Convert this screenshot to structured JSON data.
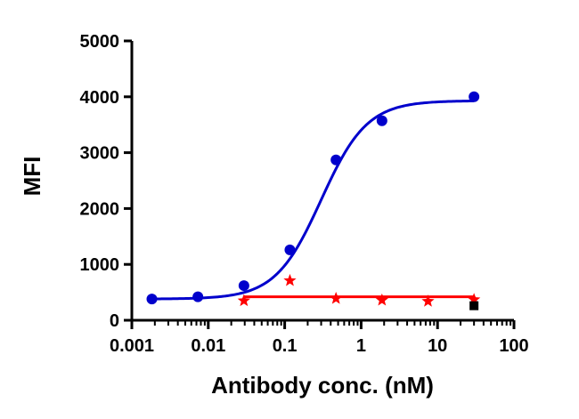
{
  "chart_data": {
    "type": "scatter",
    "xlabel": "Antibody conc. (nM)",
    "ylabel": "MFI",
    "x_scale": "log",
    "xlim": [
      0.001,
      100
    ],
    "ylim": [
      0,
      5000
    ],
    "x_ticks": [
      0.001,
      0.01,
      0.1,
      1,
      10,
      100
    ],
    "x_tick_labels": [
      "0.001",
      "0.01",
      "0.1",
      "1",
      "10",
      "100"
    ],
    "y_ticks": [
      0,
      1000,
      2000,
      3000,
      4000,
      5000
    ],
    "y_tick_labels": [
      "0",
      "1000",
      "2000",
      "3000",
      "4000",
      "5000"
    ],
    "grid": false,
    "series": [
      {
        "color": "#0000cc",
        "marker": "circle",
        "x": [
          0.00183,
          0.00732,
          0.0293,
          0.117,
          0.469,
          1.875,
          30
        ],
        "y": [
          380,
          420,
          620,
          1260,
          2870,
          3570,
          4000
        ],
        "fit": {
          "model": "4PL",
          "bottom": 380,
          "top": 3930,
          "ec50": 0.3,
          "hill": 1.45
        }
      },
      {
        "color": "#ff0000",
        "marker": "star",
        "x": [
          0.0293,
          0.117,
          0.469,
          1.875,
          7.5,
          30
        ],
        "y": [
          350,
          710,
          390,
          360,
          340,
          370
        ],
        "fit": {
          "model": "constant",
          "value": 420,
          "x_range": [
            0.0293,
            30
          ]
        }
      },
      {
        "color": "#000000",
        "marker": "square",
        "x": [
          30
        ],
        "y": [
          260
        ]
      }
    ]
  }
}
